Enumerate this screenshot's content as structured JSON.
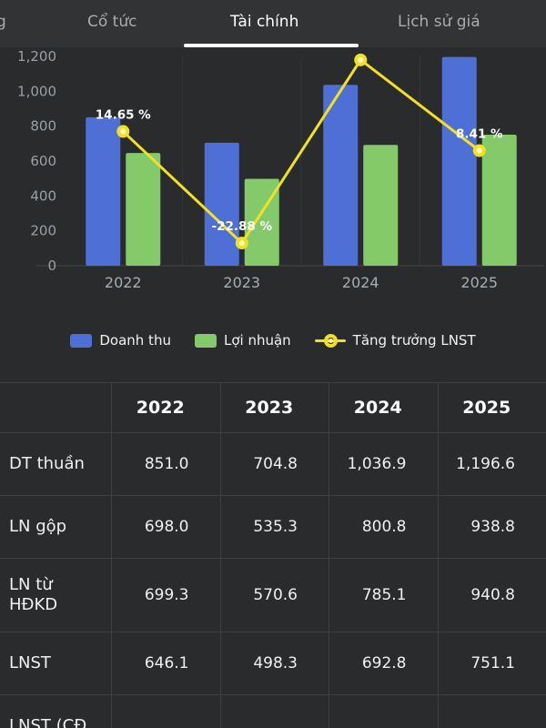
{
  "tabs": [
    {
      "label": "g",
      "active": false
    },
    {
      "label": "Cổ tức",
      "active": false
    },
    {
      "label": "Tài chính",
      "active": true
    },
    {
      "label": "Lịch sử giá",
      "active": false
    }
  ],
  "chart_data": {
    "type": "combo",
    "categories": [
      "2022",
      "2023",
      "2024",
      "2025"
    ],
    "series": [
      {
        "name": "Doanh thu",
        "type": "bar",
        "color": "#4d6fd6",
        "values": [
          851.0,
          704.8,
          1036.9,
          1196.6
        ]
      },
      {
        "name": "Lợi nhuận",
        "type": "bar",
        "color": "#84c96a",
        "values": [
          646.1,
          498.3,
          692.8,
          751.1
        ]
      },
      {
        "name": "Tăng trưởng LNST",
        "type": "line",
        "color": "#f2e025",
        "plotted": [
          770,
          130,
          1180,
          660
        ],
        "labels": [
          "14.65 %",
          "-22.88 %",
          "",
          "8.41 %"
        ]
      }
    ],
    "ylim": [
      0,
      1200
    ],
    "yticks": [
      {
        "label": "0",
        "value": 0
      },
      {
        "label": "200",
        "value": 200
      },
      {
        "label": "400",
        "value": 400
      },
      {
        "label": "600",
        "value": 600
      },
      {
        "label": "800",
        "value": 800
      },
      {
        "label": "1,000",
        "value": 1000
      },
      {
        "label": "1,200",
        "value": 1200
      }
    ],
    "legend_position": "bottom",
    "grid": false
  },
  "table": {
    "headers": [
      "",
      "2022",
      "2023",
      "2024",
      "2025"
    ],
    "rows": [
      {
        "label": "DT thuần",
        "values": [
          "851.0",
          "704.8",
          "1,036.9",
          "1,196.6"
        ]
      },
      {
        "label": "LN gộp",
        "values": [
          "698.0",
          "535.3",
          "800.8",
          "938.8"
        ]
      },
      {
        "label": "LN từ HĐKD",
        "values": [
          "699.3",
          "570.6",
          "785.1",
          "940.8"
        ]
      },
      {
        "label": "LNST",
        "values": [
          "646.1",
          "498.3",
          "692.8",
          "751.1"
        ]
      },
      {
        "label": "LNST (CĐ",
        "values": [
          "",
          "",
          "",
          ""
        ]
      }
    ]
  },
  "colors": {
    "background": "#2a2b2c",
    "tabbar_background": "#323334",
    "active_tab_underline": "#ffffff",
    "axis_text": "#9aa0a6",
    "table_border": "#3f4040"
  }
}
